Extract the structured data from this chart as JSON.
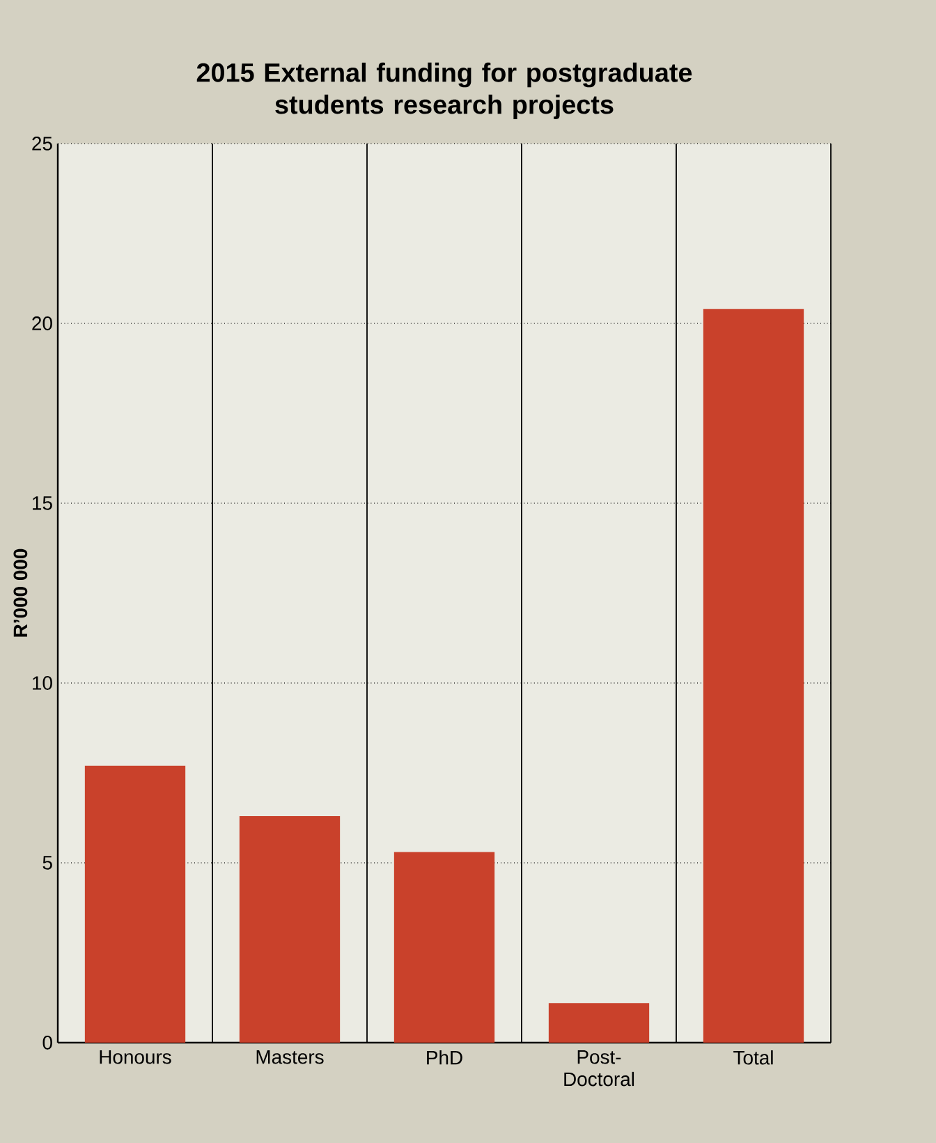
{
  "chart_data": {
    "type": "bar",
    "title": "2015 External funding for postgraduate students research projects",
    "ylabel": "R’000 000",
    "categories": [
      "Honours",
      "Masters",
      "PhD",
      "Post-Doctoral",
      "Total"
    ],
    "values": [
      7.7,
      6.3,
      5.3,
      1.1,
      20.4
    ],
    "color": "#c9412b",
    "ylim": [
      0,
      25
    ],
    "yticks": [
      0,
      5,
      10,
      15,
      20,
      25
    ],
    "grid": true
  }
}
